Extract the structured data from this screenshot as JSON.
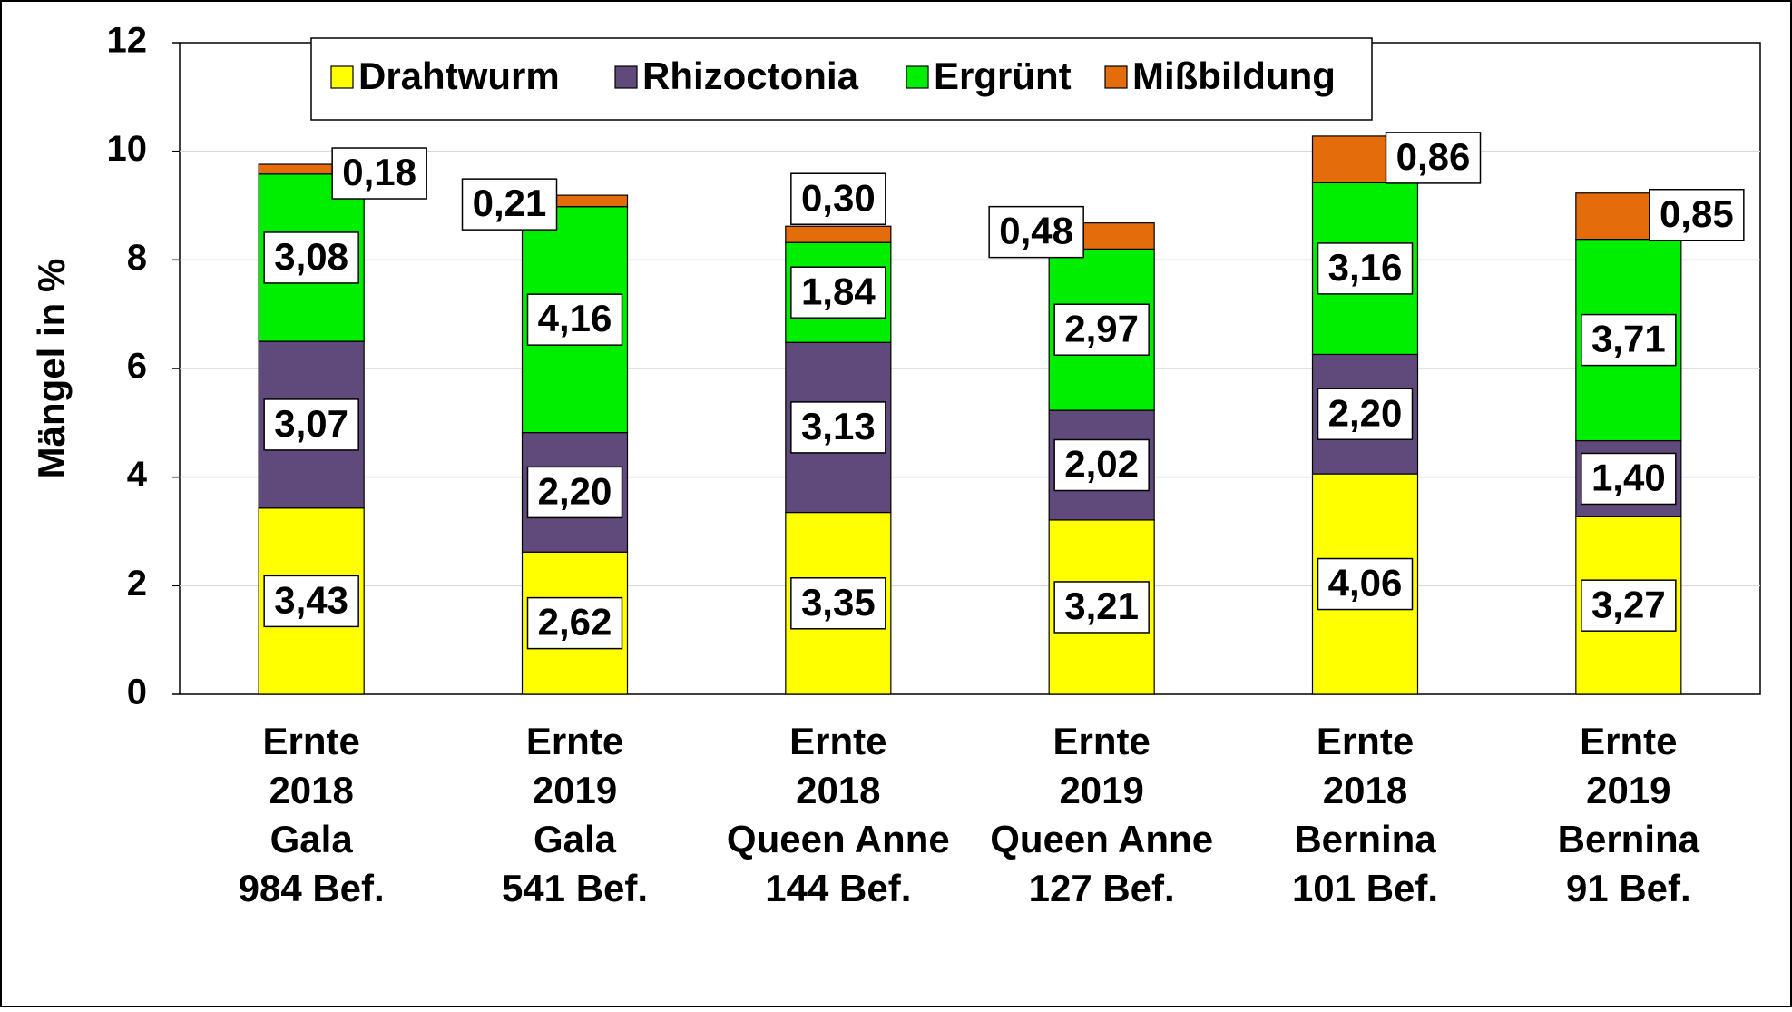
{
  "chart_data": {
    "type": "stacked_bar",
    "y_label": "Mängel in %",
    "categories": [
      [
        "Ernte",
        "2018",
        "Gala",
        "984 Bef."
      ],
      [
        "Ernte",
        "2019",
        "Gala",
        "541 Bef."
      ],
      [
        "Ernte",
        "2018",
        "Queen Anne",
        "144 Bef."
      ],
      [
        "Ernte",
        "2019",
        "Queen Anne",
        "127 Bef."
      ],
      [
        "Ernte",
        "2018",
        "Bernina",
        "101 Bef."
      ],
      [
        "Ernte",
        "2019",
        "Bernina",
        "91 Bef."
      ]
    ],
    "series": [
      {
        "name": "Drahtwurm",
        "color": "#ffff00",
        "values": [
          3.43,
          2.62,
          3.35,
          3.21,
          4.06,
          3.27
        ],
        "value_labels": [
          "3,43",
          "2,62",
          "3,35",
          "3,21",
          "4,06",
          "3,27"
        ]
      },
      {
        "name": "Rhizoctonia",
        "color": "#604a7b",
        "values": [
          3.07,
          2.2,
          3.13,
          2.02,
          2.2,
          1.4
        ],
        "value_labels": [
          "3,07",
          "2,20",
          "3,13",
          "2,02",
          "2,20",
          "1,40"
        ]
      },
      {
        "name": "Ergrünt",
        "color": "#00ee00",
        "values": [
          3.08,
          4.16,
          1.84,
          2.97,
          3.16,
          3.71
        ],
        "value_labels": [
          "3,08",
          "4,16",
          "1,84",
          "2,97",
          "3,16",
          "3,71"
        ]
      },
      {
        "name": "Mißbildung",
        "color": "#e46c0a",
        "values": [
          0.18,
          0.21,
          0.3,
          0.48,
          0.86,
          0.85
        ],
        "value_labels": [
          "0,18",
          "0,21",
          "0,30",
          "0,48",
          "0,86",
          "0,85"
        ]
      }
    ],
    "ylim": [
      0,
      12
    ],
    "yticks": [
      0,
      2,
      4,
      6,
      8,
      10,
      12
    ],
    "grid": true,
    "legend": "top"
  }
}
